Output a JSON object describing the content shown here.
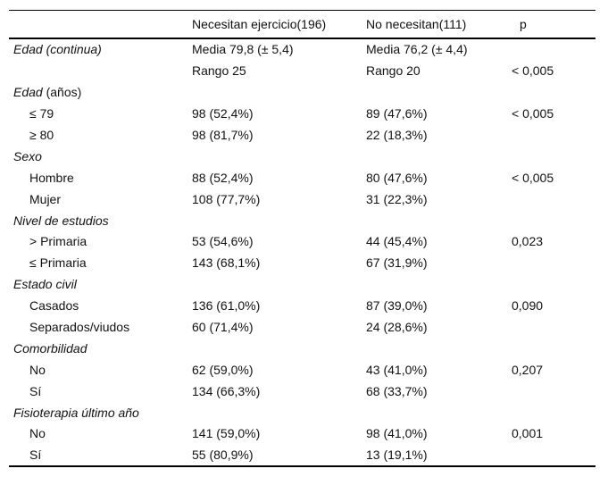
{
  "table": {
    "columns": [
      "",
      "Necesitan ejercicio(196)",
      "No necesitan(111)",
      "p"
    ],
    "rows": [
      {
        "label": "Edad (continua)",
        "italic": true,
        "indent": false,
        "g1": "Media 79,8 (± 5,4)",
        "g2": "Media 76,2 (± 4,4)",
        "p": ""
      },
      {
        "label": "",
        "italic": false,
        "indent": false,
        "g1": "Rango 25",
        "g2": "Rango 20",
        "p": "< 0,005"
      },
      {
        "label": "Edad",
        "suffix": " (años)",
        "italic": true,
        "indent": false,
        "g1": "",
        "g2": "",
        "p": ""
      },
      {
        "label": "≤ 79",
        "italic": false,
        "indent": true,
        "g1": "98 (52,4%)",
        "g2": "89 (47,6%)",
        "p": "< 0,005"
      },
      {
        "label": "≥ 80",
        "italic": false,
        "indent": true,
        "g1": "98 (81,7%)",
        "g2": "22 (18,3%)",
        "p": ""
      },
      {
        "label": "Sexo",
        "italic": true,
        "indent": false,
        "g1": "",
        "g2": "",
        "p": ""
      },
      {
        "label": "Hombre",
        "italic": false,
        "indent": true,
        "g1": "88 (52,4%)",
        "g2": "80 (47,6%)",
        "p": "< 0,005"
      },
      {
        "label": "Mujer",
        "italic": false,
        "indent": true,
        "g1": "108 (77,7%)",
        "g2": "31 (22,3%)",
        "p": ""
      },
      {
        "label": "Nivel de estudios",
        "italic": true,
        "indent": false,
        "g1": "",
        "g2": "",
        "p": ""
      },
      {
        "label": "> Primaria",
        "italic": false,
        "indent": true,
        "g1": "53 (54,6%)",
        "g2": "44 (45,4%)",
        "p": "0,023"
      },
      {
        "label": "≤ Primaria",
        "italic": false,
        "indent": true,
        "g1": "143 (68,1%)",
        "g2": "67 (31,9%)",
        "p": ""
      },
      {
        "label": "Estado civil",
        "italic": true,
        "indent": false,
        "g1": "",
        "g2": "",
        "p": ""
      },
      {
        "label": "Casados",
        "italic": false,
        "indent": true,
        "g1": "136 (61,0%)",
        "g2": "87 (39,0%)",
        "p": "0,090"
      },
      {
        "label": "Separados/viudos",
        "italic": false,
        "indent": true,
        "g1": "60 (71,4%)",
        "g2": "24 (28,6%)",
        "p": ""
      },
      {
        "label": "Comorbilidad",
        "italic": true,
        "indent": false,
        "g1": "",
        "g2": "",
        "p": ""
      },
      {
        "label": "No",
        "italic": false,
        "indent": true,
        "g1": "62 (59,0%)",
        "g2": "43 (41,0%)",
        "p": "0,207"
      },
      {
        "label": "Sí",
        "italic": false,
        "indent": true,
        "g1": "134 (66,3%)",
        "g2": "68 (33,7%)",
        "p": ""
      },
      {
        "label": "Fisioterapia último año",
        "italic": true,
        "indent": false,
        "g1": "",
        "g2": "",
        "p": ""
      },
      {
        "label": "No",
        "italic": false,
        "indent": true,
        "g1": "141 (59,0%)",
        "g2": "98 (41,0%)",
        "p": "0,001"
      },
      {
        "label": "Sí",
        "italic": false,
        "indent": true,
        "g1": "55 (80,9%)",
        "g2": "13 (19,1%)",
        "p": ""
      }
    ]
  }
}
